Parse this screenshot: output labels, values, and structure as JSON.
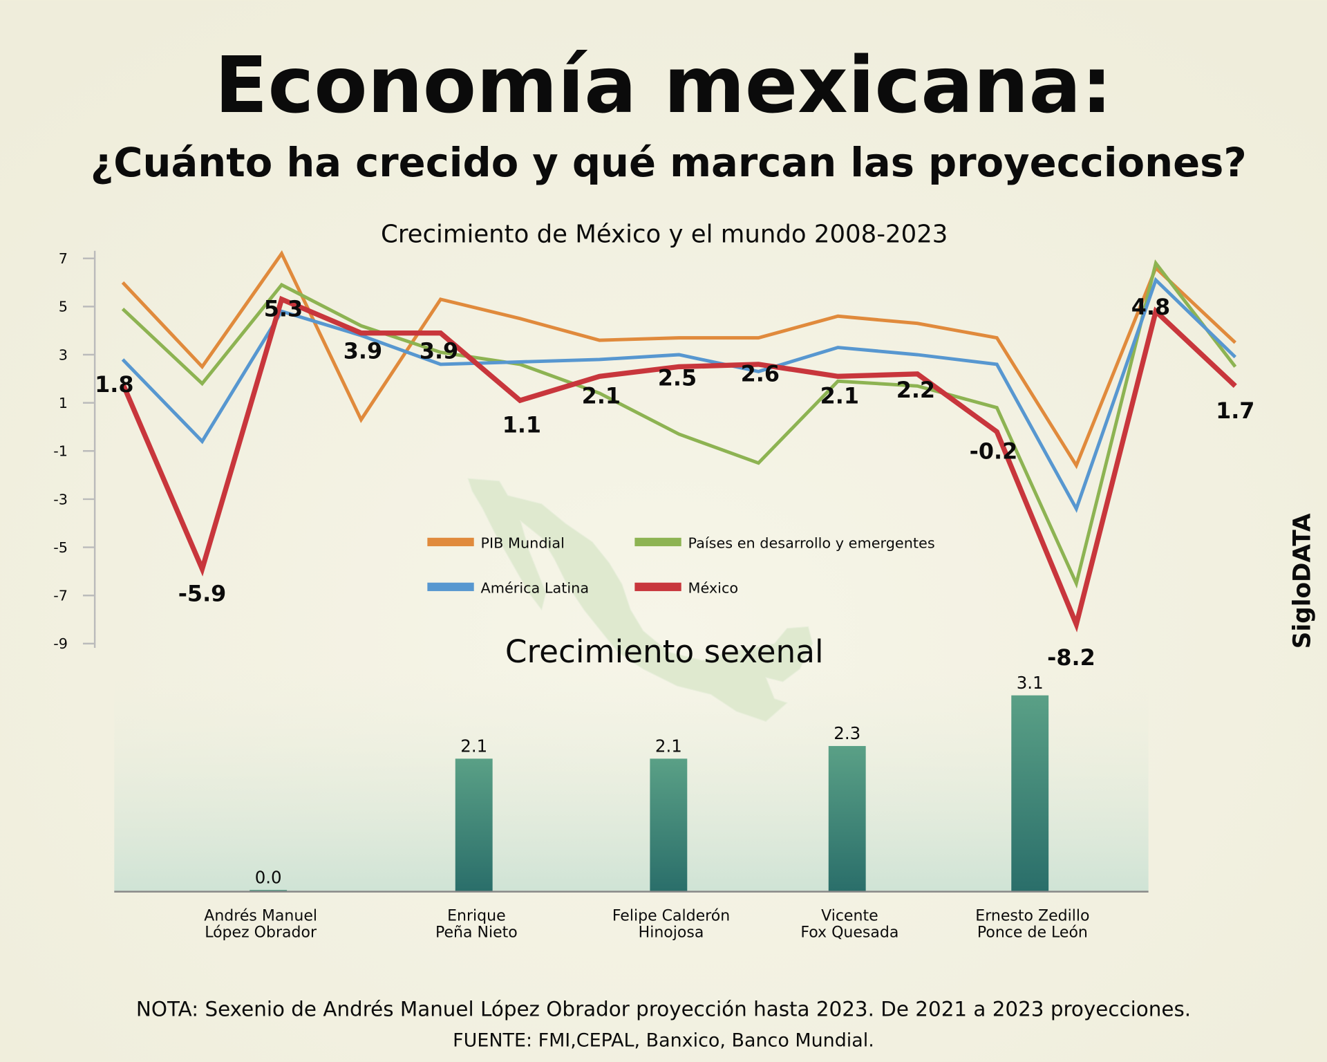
{
  "title": "Economía mexicana:",
  "subtitle": "¿Cuánto ha crecido y qué marcan las proyecciones?",
  "brand": "SigloDATA",
  "note": "NOTA: Sexenio de Andrés Manuel López Obrador proyección hasta 2023. De 2021 a 2023 proyecciones.",
  "source": "FUENTE: FMI,CEPAL, Banxico, Banco Mundial.",
  "chart_data": [
    {
      "type": "line",
      "title": "Crecimiento de México y el mundo 2008-2023",
      "ylim": [
        -9,
        7
      ],
      "yticks": [
        "7",
        "5",
        "3",
        "1",
        "-1",
        "-3",
        "-5",
        "-7",
        "-9"
      ],
      "grid": false,
      "legend_placement": "center",
      "series": [
        {
          "name": "PIB Mundial",
          "color": "#e08a3c",
          "values": [
            6.0,
            2.5,
            7.2,
            0.3,
            5.3,
            4.5,
            3.6,
            3.7,
            3.7,
            4.6,
            4.3,
            3.7,
            -1.6,
            6.6,
            3.5
          ]
        },
        {
          "name": "Países en desarrollo y emergentes",
          "color": "#8db352",
          "values": [
            4.9,
            1.8,
            5.9,
            4.2,
            3.1,
            2.6,
            1.4,
            -0.3,
            -1.5,
            1.9,
            1.7,
            0.8,
            -6.5,
            6.8,
            2.5
          ]
        },
        {
          "name": "América Latina",
          "color": "#5797d0",
          "values": [
            2.8,
            -0.6,
            4.8,
            3.8,
            2.6,
            2.7,
            2.8,
            3.0,
            2.3,
            3.3,
            3.0,
            2.6,
            -3.4,
            6.1,
            2.9
          ]
        },
        {
          "name": "México",
          "color": "#c8363c",
          "values": [
            1.8,
            -5.9,
            5.3,
            3.9,
            3.9,
            1.1,
            2.1,
            2.5,
            2.6,
            2.1,
            2.2,
            -0.2,
            -8.2,
            4.8,
            1.7
          ],
          "labels": [
            "1.8",
            "-5.9",
            "5.3",
            "3.9",
            "3.9",
            "1.1",
            "2.1",
            "2.5",
            "2.6",
            "2.1",
            "2.2",
            "-0.2",
            "-8.2",
            "4.8",
            "1.7"
          ]
        }
      ]
    },
    {
      "type": "bar",
      "title": "Crecimiento sexenal",
      "color": "#3b8a78",
      "categories": [
        [
          "Andrés Manuel",
          "López Obrador"
        ],
        [
          "Enrique",
          "Peña Nieto"
        ],
        [
          "Felipe Calderón",
          "Hinojosa"
        ],
        [
          "Vicente",
          "Fox Quesada"
        ],
        [
          "Ernesto Zedillo",
          "Ponce de León"
        ]
      ],
      "values": [
        0.0,
        2.1,
        2.1,
        2.3,
        3.1
      ],
      "labels": [
        "0.0",
        "2.1",
        "2.1",
        "2.3",
        "3.1"
      ]
    }
  ]
}
